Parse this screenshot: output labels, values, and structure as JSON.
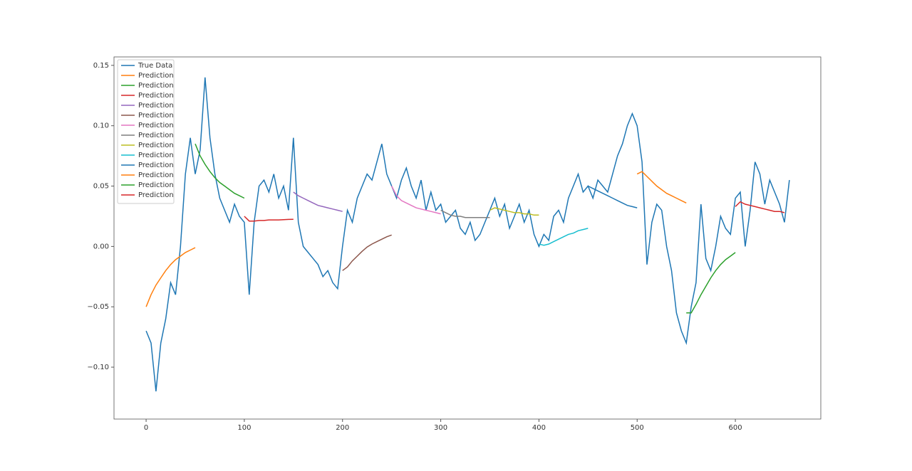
{
  "chart_data": {
    "type": "line",
    "xlim": [
      -32.7,
      687
    ],
    "ylim": [
      -0.143,
      0.157
    ],
    "xticks": [
      0,
      100,
      200,
      300,
      400,
      500,
      600
    ],
    "yticks": [
      {
        "value": -0.1,
        "label": "−0.10"
      },
      {
        "value": -0.05,
        "label": "−0.05"
      },
      {
        "value": 0,
        "label": "0.00"
      },
      {
        "value": 0.05,
        "label": "0.05"
      },
      {
        "value": 0.1,
        "label": "0.10"
      },
      {
        "value": 0.15,
        "label": "0.15"
      }
    ],
    "legend": "upper left",
    "grid": false,
    "series": [
      {
        "name": "True Data",
        "color": "#1f77b4",
        "x": [
          0,
          5,
          10,
          15,
          20,
          25,
          30,
          35,
          40,
          45,
          50,
          55,
          60,
          65,
          70,
          75,
          80,
          85,
          90,
          95,
          100,
          105,
          110,
          115,
          120,
          125,
          130,
          135,
          140,
          145,
          150,
          155,
          160,
          165,
          170,
          175,
          180,
          185,
          190,
          195,
          200,
          205,
          210,
          215,
          220,
          225,
          230,
          235,
          240,
          245,
          250,
          255,
          260,
          265,
          270,
          275,
          280,
          285,
          290,
          295,
          300,
          305,
          310,
          315,
          320,
          325,
          330,
          335,
          340,
          345,
          350,
          355,
          360,
          365,
          370,
          375,
          380,
          385,
          390,
          395,
          400,
          405,
          410,
          415,
          420,
          425,
          430,
          435,
          440,
          445,
          450,
          455,
          460,
          465,
          470,
          475,
          480,
          485,
          490,
          495,
          500,
          505,
          510,
          515,
          520,
          525,
          530,
          535,
          540,
          545,
          550,
          555,
          560,
          565,
          570,
          575,
          580,
          585,
          590,
          595,
          600,
          605,
          610,
          615,
          620,
          625,
          630,
          635,
          640,
          645,
          650,
          655
        ],
        "values": [
          -0.07,
          -0.08,
          -0.12,
          -0.08,
          -0.06,
          -0.03,
          -0.04,
          0.0,
          0.06,
          0.09,
          0.06,
          0.08,
          0.14,
          0.09,
          0.06,
          0.04,
          0.03,
          0.02,
          0.035,
          0.025,
          0.02,
          -0.04,
          0.02,
          0.05,
          0.055,
          0.045,
          0.06,
          0.04,
          0.05,
          0.03,
          0.09,
          0.02,
          0.0,
          -0.005,
          -0.01,
          -0.015,
          -0.025,
          -0.02,
          -0.03,
          -0.035,
          0.0,
          0.03,
          0.02,
          0.04,
          0.05,
          0.06,
          0.055,
          0.07,
          0.085,
          0.06,
          0.05,
          0.04,
          0.055,
          0.065,
          0.05,
          0.04,
          0.055,
          0.03,
          0.045,
          0.03,
          0.035,
          0.02,
          0.025,
          0.03,
          0.015,
          0.01,
          0.02,
          0.005,
          0.01,
          0.02,
          0.03,
          0.04,
          0.025,
          0.035,
          0.015,
          0.025,
          0.035,
          0.02,
          0.03,
          0.01,
          0.0,
          0.01,
          0.005,
          0.025,
          0.03,
          0.02,
          0.04,
          0.05,
          0.06,
          0.045,
          0.05,
          0.04,
          0.055,
          0.05,
          0.045,
          0.06,
          0.075,
          0.085,
          0.1,
          0.11,
          0.1,
          0.07,
          -0.015,
          0.02,
          0.035,
          0.03,
          0.0,
          -0.02,
          -0.055,
          -0.07,
          -0.08,
          -0.05,
          -0.03,
          0.035,
          -0.01,
          -0.02,
          0.0,
          0.025,
          0.015,
          0.01,
          0.04,
          0.045,
          0.0,
          0.03,
          0.07,
          0.06,
          0.035,
          0.055,
          0.045,
          0.035,
          0.02,
          0.055
        ]
      },
      {
        "name": "Prediction",
        "color": "#ff7f0e",
        "x": [
          0,
          5,
          10,
          15,
          20,
          25,
          30,
          35,
          40,
          45,
          50
        ],
        "values": [
          -0.05,
          -0.04,
          -0.032,
          -0.026,
          -0.02,
          -0.015,
          -0.011,
          -0.008,
          -0.005,
          -0.003,
          -0.001
        ]
      },
      {
        "name": "Prediction",
        "color": "#2ca02c",
        "x": [
          50,
          55,
          60,
          65,
          70,
          75,
          80,
          85,
          90,
          95,
          100
        ],
        "values": [
          0.085,
          0.075,
          0.068,
          0.062,
          0.057,
          0.053,
          0.05,
          0.047,
          0.044,
          0.042,
          0.04
        ]
      },
      {
        "name": "Prediction",
        "color": "#d62728",
        "x": [
          100,
          105,
          110,
          115,
          120,
          125,
          130,
          135,
          140,
          145,
          150
        ],
        "values": [
          0.025,
          0.021,
          0.021,
          0.0215,
          0.0215,
          0.022,
          0.022,
          0.022,
          0.0222,
          0.0224,
          0.0225
        ]
      },
      {
        "name": "Prediction",
        "color": "#9467bd",
        "x": [
          150,
          155,
          160,
          165,
          170,
          175,
          180,
          185,
          190,
          195,
          200
        ],
        "values": [
          0.045,
          0.042,
          0.04,
          0.038,
          0.036,
          0.034,
          0.033,
          0.032,
          0.031,
          0.03,
          0.029
        ]
      },
      {
        "name": "Prediction",
        "color": "#8c564b",
        "x": [
          200,
          205,
          210,
          215,
          220,
          225,
          230,
          235,
          240,
          245,
          250
        ],
        "values": [
          -0.02,
          -0.017,
          -0.012,
          -0.008,
          -0.004,
          -0.0005,
          0.002,
          0.004,
          0.006,
          0.008,
          0.0095
        ]
      },
      {
        "name": "Prediction",
        "color": "#e377c2",
        "x": [
          250,
          255,
          260,
          265,
          270,
          275,
          280,
          285,
          290,
          295,
          300
        ],
        "values": [
          0.05,
          0.042,
          0.038,
          0.036,
          0.034,
          0.032,
          0.031,
          0.03,
          0.029,
          0.028,
          0.027
        ]
      },
      {
        "name": "Prediction",
        "color": "#7f7f7f",
        "x": [
          300,
          305,
          310,
          315,
          320,
          325,
          330,
          335,
          340,
          345,
          350
        ],
        "values": [
          0.03,
          0.028,
          0.026,
          0.025,
          0.025,
          0.024,
          0.024,
          0.024,
          0.024,
          0.024,
          0.024
        ]
      },
      {
        "name": "Prediction",
        "color": "#bcbd22",
        "x": [
          350,
          355,
          360,
          365,
          370,
          375,
          380,
          385,
          390,
          395,
          400
        ],
        "values": [
          0.03,
          0.032,
          0.031,
          0.03,
          0.029,
          0.028,
          0.028,
          0.027,
          0.027,
          0.026,
          0.026
        ]
      },
      {
        "name": "Prediction",
        "color": "#17becf",
        "x": [
          400,
          405,
          410,
          415,
          420,
          425,
          430,
          435,
          440,
          445,
          450
        ],
        "values": [
          0.002,
          0.001,
          0.002,
          0.004,
          0.006,
          0.008,
          0.01,
          0.011,
          0.013,
          0.014,
          0.015
        ]
      },
      {
        "name": "Prediction",
        "color": "#1f77b4",
        "x": [
          450,
          455,
          460,
          465,
          470,
          475,
          480,
          485,
          490,
          495,
          500
        ],
        "values": [
          0.05,
          0.048,
          0.046,
          0.044,
          0.042,
          0.04,
          0.038,
          0.036,
          0.034,
          0.033,
          0.032
        ]
      },
      {
        "name": "Prediction",
        "color": "#ff7f0e",
        "x": [
          500,
          505,
          510,
          515,
          520,
          525,
          530,
          535,
          540,
          545,
          550
        ],
        "values": [
          0.06,
          0.062,
          0.058,
          0.054,
          0.05,
          0.047,
          0.044,
          0.042,
          0.04,
          0.038,
          0.036
        ]
      },
      {
        "name": "Prediction",
        "color": "#2ca02c",
        "x": [
          550,
          555,
          560,
          565,
          570,
          575,
          580,
          585,
          590,
          595,
          600
        ],
        "values": [
          -0.055,
          -0.055,
          -0.048,
          -0.04,
          -0.033,
          -0.026,
          -0.02,
          -0.015,
          -0.011,
          -0.008,
          -0.005
        ]
      },
      {
        "name": "Prediction",
        "color": "#d62728",
        "x": [
          600,
          605,
          610,
          615,
          620,
          625,
          630,
          635,
          640,
          645,
          650
        ],
        "values": [
          0.033,
          0.037,
          0.035,
          0.034,
          0.033,
          0.032,
          0.031,
          0.03,
          0.029,
          0.029,
          0.028
        ]
      }
    ]
  }
}
